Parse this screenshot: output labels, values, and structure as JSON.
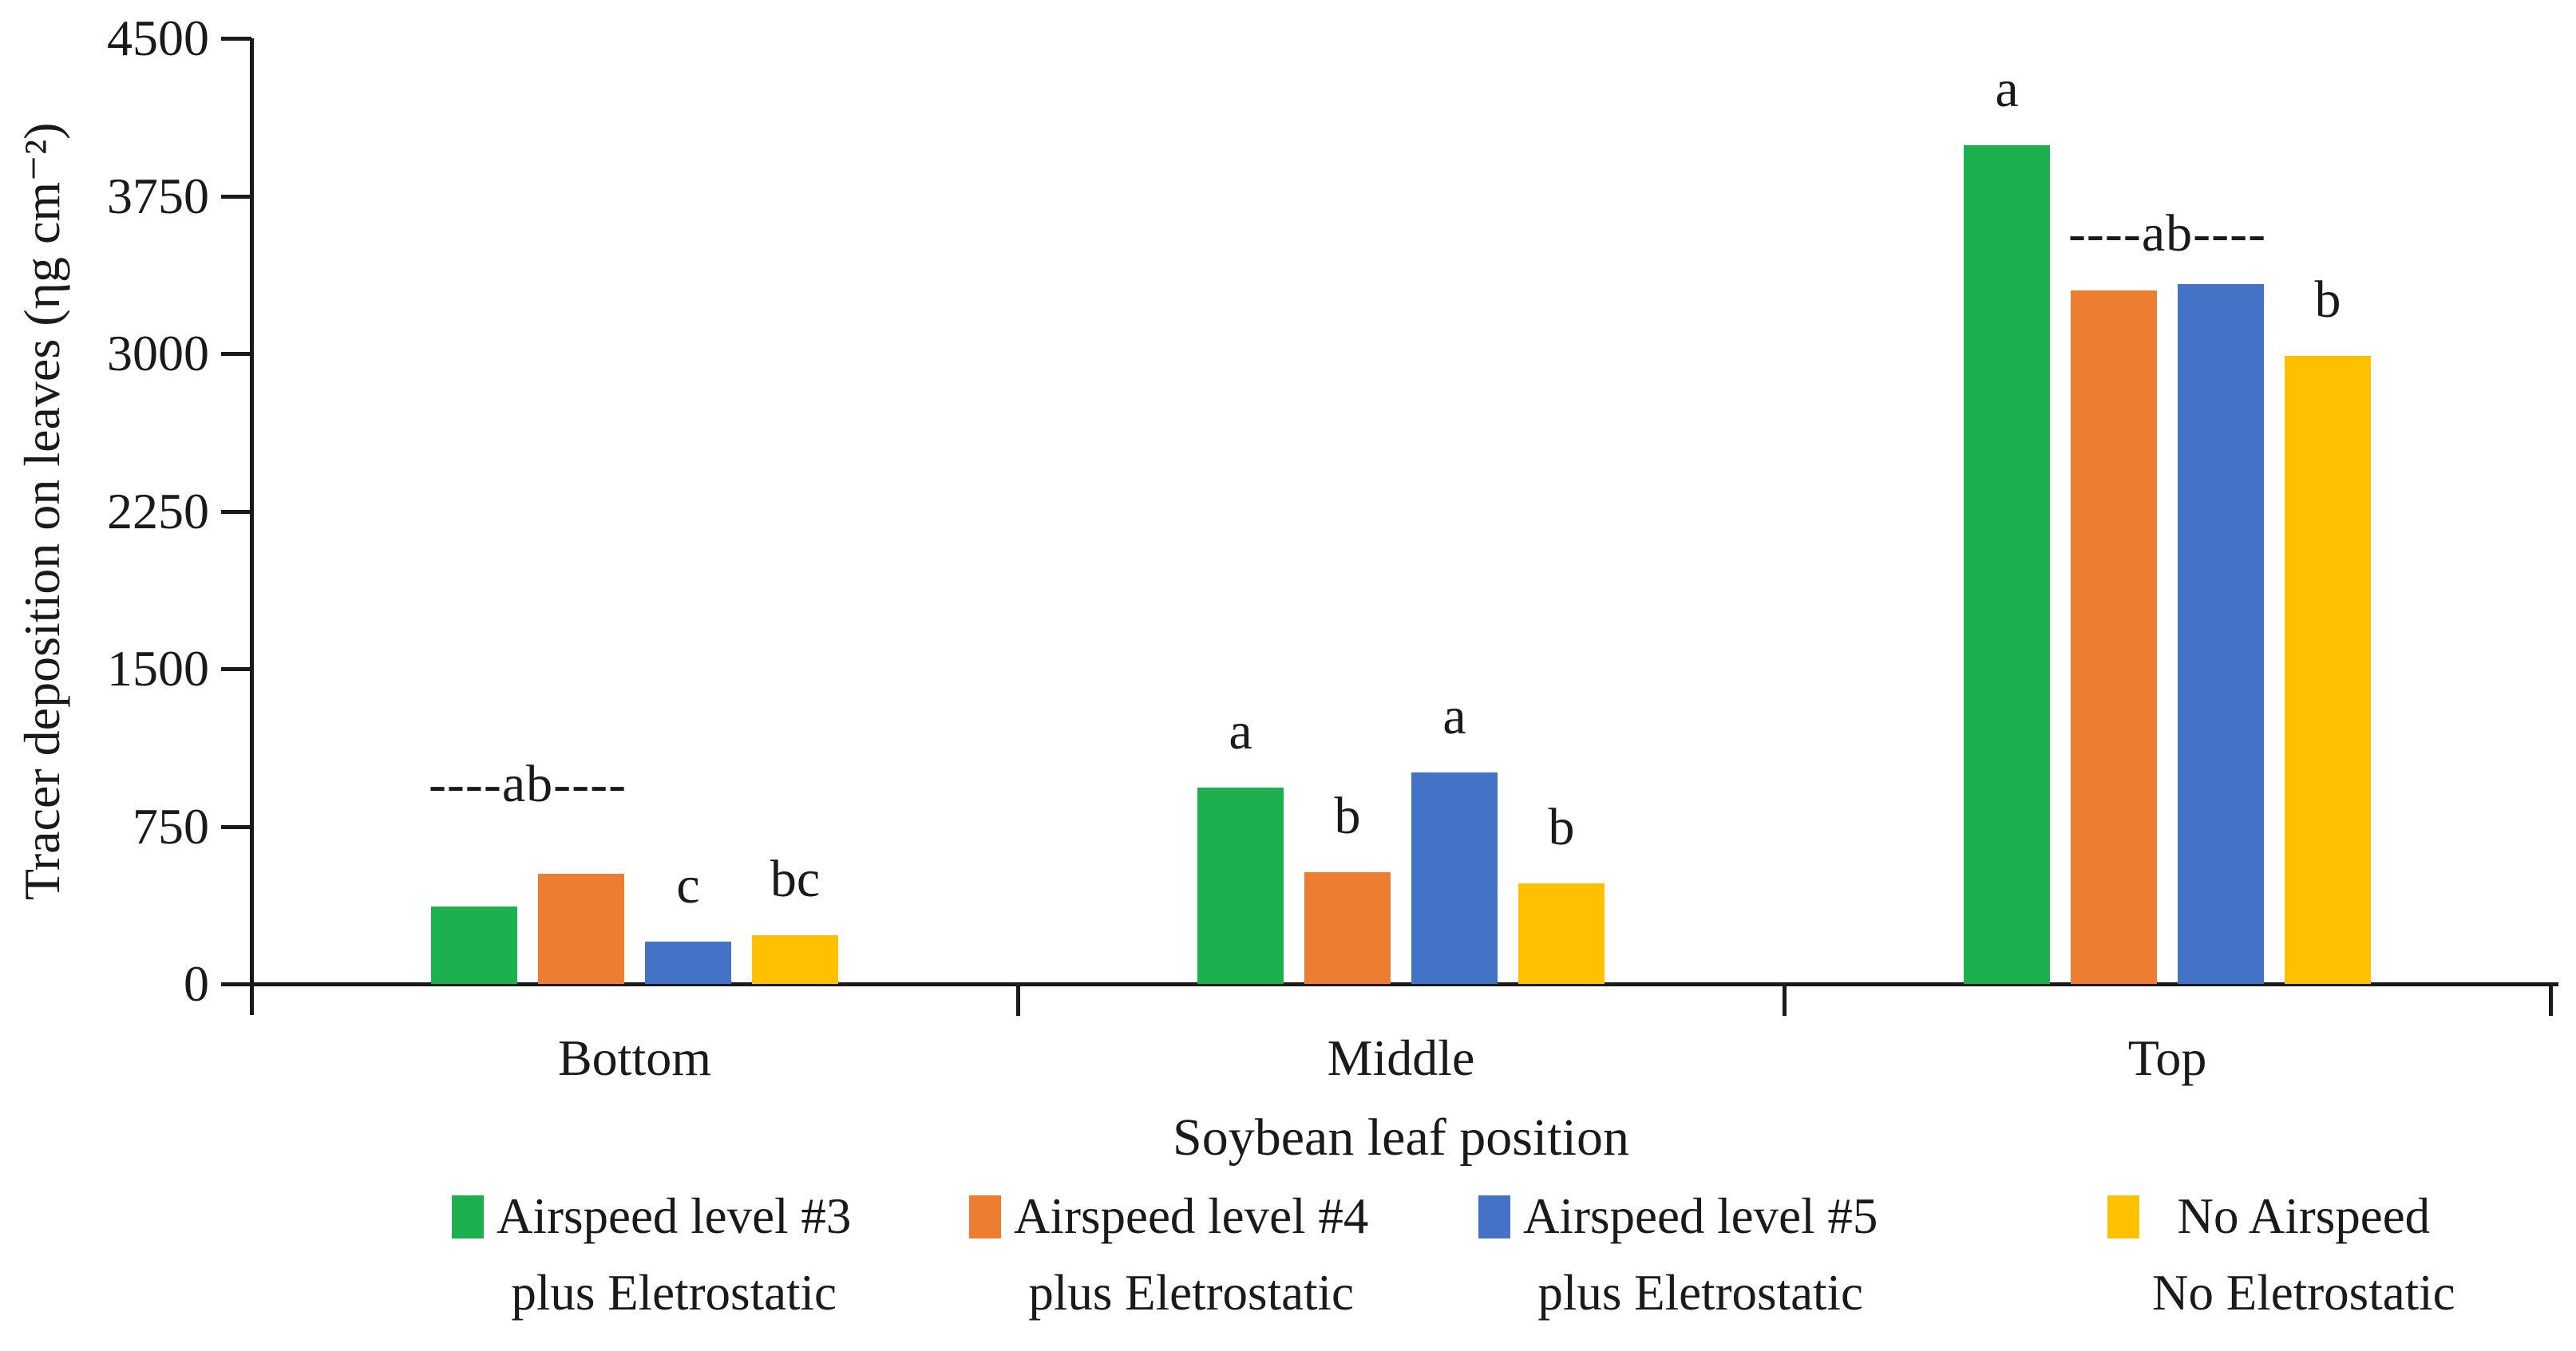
{
  "figure": {
    "background": "#FFFFFF",
    "axis_color": "#1A1A1A"
  },
  "chart_data": {
    "type": "bar",
    "title": "",
    "categories": [
      "Bottom",
      "Middle",
      "Top"
    ],
    "series": [
      {
        "name": "Airspeed level #3 plus Eletrostatic",
        "color": "#1DB04E",
        "values": [
          370,
          935,
          3990
        ]
      },
      {
        "name": "Airspeed level #4 plus Eletrostatic",
        "color": "#ED7D31",
        "values": [
          525,
          530,
          3300
        ]
      },
      {
        "name": "Airspeed level #5 plus Eletrostatic",
        "color": "#4472C4",
        "values": [
          200,
          1005,
          3330
        ]
      },
      {
        "name": "No Airspeed No Eletrostatic",
        "color": "#FFC000",
        "values": [
          230,
          480,
          2990
        ]
      }
    ],
    "significance_letters": [
      [
        "",
        "",
        "c",
        "bc"
      ],
      [
        "a",
        "b",
        "a",
        "b"
      ],
      [
        "a",
        "",
        "",
        "b"
      ]
    ],
    "span_labels": [
      {
        "category": 0,
        "bars": [
          0,
          1
        ],
        "text": "----ab----",
        "value": 950
      },
      {
        "category": 2,
        "bars": [
          1,
          2
        ],
        "text": "----ab----",
        "value": 3570
      }
    ],
    "xlabel": "Soybean leaf position",
    "ylabel": "Tracer deposition on leaves (ηg cm⁻²)",
    "ylim": [
      0,
      4500
    ],
    "yticks": [
      0,
      750,
      1500,
      2250,
      3000,
      3750,
      4500
    ],
    "grid": false,
    "legend_position": "bottom"
  },
  "legend": {
    "items": [
      {
        "line1": "Airspeed level #3",
        "line2": "plus Eletrostatic",
        "color": "#1DB04E"
      },
      {
        "line1": "Airspeed level #4",
        "line2": "plus Eletrostatic",
        "color": "#ED7D31"
      },
      {
        "line1": "Airspeed level #5",
        "line2": "plus Eletrostatic",
        "color": "#4472C4"
      },
      {
        "line1": "No Airspeed",
        "line2": "No Eletrostatic",
        "color": "#FFC000"
      }
    ]
  }
}
